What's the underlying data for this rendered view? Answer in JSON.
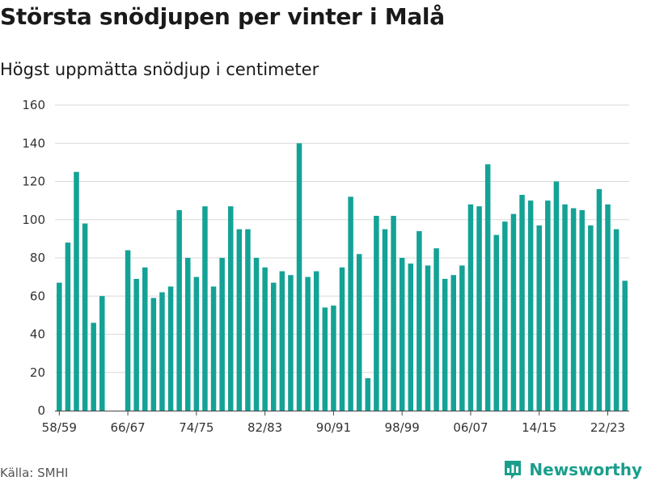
{
  "title": "Största snödjupen per vinter i Malå",
  "subtitle": "Högst uppmätta snödjup i centimeter",
  "source": "Källa: SMHI",
  "brand": {
    "name": "Newsworthy",
    "icon": "chart-bars-logo-icon",
    "color": "#1a9e8c"
  },
  "colors": {
    "bar": "#14a296",
    "grid": "#d9d9d9",
    "axis": "#444444"
  },
  "chart_data": {
    "type": "bar",
    "title": "Största snödjupen per vinter i Malå",
    "ylabel": "Högst uppmätta snödjup i centimeter",
    "xlabel": "",
    "ylim": [
      0,
      160
    ],
    "yticks": [
      0,
      20,
      40,
      60,
      80,
      100,
      120,
      140,
      160
    ],
    "xtick_labels": [
      "58/59",
      "66/67",
      "74/75",
      "82/83",
      "90/91",
      "98/99",
      "06/07",
      "14/15",
      "22/23"
    ],
    "categories": [
      "58/59",
      "59/60",
      "60/61",
      "61/62",
      "62/63",
      "63/64",
      "64/65",
      "65/66",
      "66/67",
      "67/68",
      "68/69",
      "69/70",
      "70/71",
      "71/72",
      "72/73",
      "73/74",
      "74/75",
      "75/76",
      "76/77",
      "77/78",
      "78/79",
      "79/80",
      "80/81",
      "81/82",
      "82/83",
      "83/84",
      "84/85",
      "85/86",
      "86/87",
      "87/88",
      "88/89",
      "89/90",
      "90/91",
      "91/92",
      "92/93",
      "93/94",
      "94/95",
      "95/96",
      "96/97",
      "97/98",
      "98/99",
      "99/00",
      "00/01",
      "01/02",
      "02/03",
      "03/04",
      "04/05",
      "05/06",
      "06/07",
      "07/08",
      "08/09",
      "09/10",
      "10/11",
      "11/12",
      "12/13",
      "13/14",
      "14/15",
      "15/16",
      "16/17",
      "17/18",
      "18/19",
      "19/20",
      "20/21",
      "21/22",
      "22/23",
      "23/24",
      "24/25"
    ],
    "values": [
      67,
      88,
      125,
      98,
      46,
      60,
      null,
      null,
      84,
      69,
      75,
      59,
      62,
      65,
      105,
      80,
      70,
      107,
      65,
      80,
      107,
      95,
      95,
      80,
      75,
      67,
      73,
      71,
      140,
      70,
      73,
      54,
      55,
      75,
      112,
      82,
      17,
      102,
      95,
      102,
      80,
      77,
      94,
      76,
      85,
      69,
      71,
      76,
      108,
      107,
      129,
      92,
      99,
      103,
      113,
      110,
      97,
      110,
      120,
      108,
      106,
      105,
      97,
      116,
      108,
      95,
      68
    ]
  }
}
